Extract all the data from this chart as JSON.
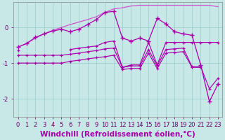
{
  "x": [
    0,
    1,
    2,
    3,
    4,
    5,
    6,
    7,
    8,
    9,
    10,
    11,
    12,
    13,
    14,
    15,
    16,
    17,
    18,
    19,
    20,
    21,
    22,
    23
  ],
  "line_top": [
    -0.55,
    -0.45,
    -0.3,
    -0.18,
    -0.08,
    0.0,
    0.08,
    0.15,
    0.22,
    0.3,
    0.42,
    0.52,
    0.55,
    0.6,
    0.62,
    0.62,
    0.62,
    0.62,
    0.62,
    0.62,
    0.62,
    0.62,
    0.62,
    0.58
  ],
  "line_wiggly": [
    -0.55,
    -0.45,
    -0.28,
    -0.18,
    -0.1,
    -0.05,
    -0.12,
    -0.05,
    0.08,
    0.22,
    0.42,
    0.45,
    -0.3,
    -0.38,
    -0.3,
    -0.38,
    0.25,
    0.1,
    -0.12,
    -0.18,
    -0.22,
    -1.05,
    -2.08,
    -1.58
  ],
  "line_a": [
    -0.65,
    null,
    null,
    null,
    null,
    null,
    -0.62,
    -0.58,
    -0.55,
    -0.52,
    -0.42,
    -0.38,
    -1.12,
    -1.05,
    -1.05,
    -0.42,
    -1.05,
    -0.42,
    -0.42,
    -0.42,
    -0.42,
    -0.42,
    -0.42,
    -0.42
  ],
  "line_b": [
    -0.78,
    -0.78,
    -0.78,
    -0.78,
    -0.78,
    -0.78,
    -0.75,
    -0.72,
    -0.68,
    -0.65,
    -0.6,
    -0.58,
    -1.12,
    -1.08,
    -1.08,
    -0.62,
    -1.08,
    -0.62,
    -0.6,
    -0.58,
    -1.1,
    -1.1,
    -1.72,
    -1.42
  ],
  "line_c": [
    -1.0,
    -1.0,
    -1.0,
    -1.0,
    -1.0,
    -1.0,
    -0.95,
    -0.92,
    -0.88,
    -0.85,
    -0.82,
    -0.78,
    -1.18,
    -1.15,
    -1.15,
    -0.72,
    -1.15,
    -0.72,
    -0.7,
    -0.68,
    -1.12,
    -1.12,
    null,
    null
  ],
  "color_dark": "#aa00aa",
  "color_light": "#cc55cc",
  "background": "#c8e8e8",
  "grid_color": "#99cccc",
  "ylim": [
    -2.5,
    0.7
  ],
  "xlim": [
    -0.5,
    23.5
  ],
  "yticks": [
    0,
    -1,
    -2
  ],
  "xlabel": "Windchill (Refroidissement éolien,°C)",
  "tick_fontsize": 6,
  "xlabel_fontsize": 7.5
}
